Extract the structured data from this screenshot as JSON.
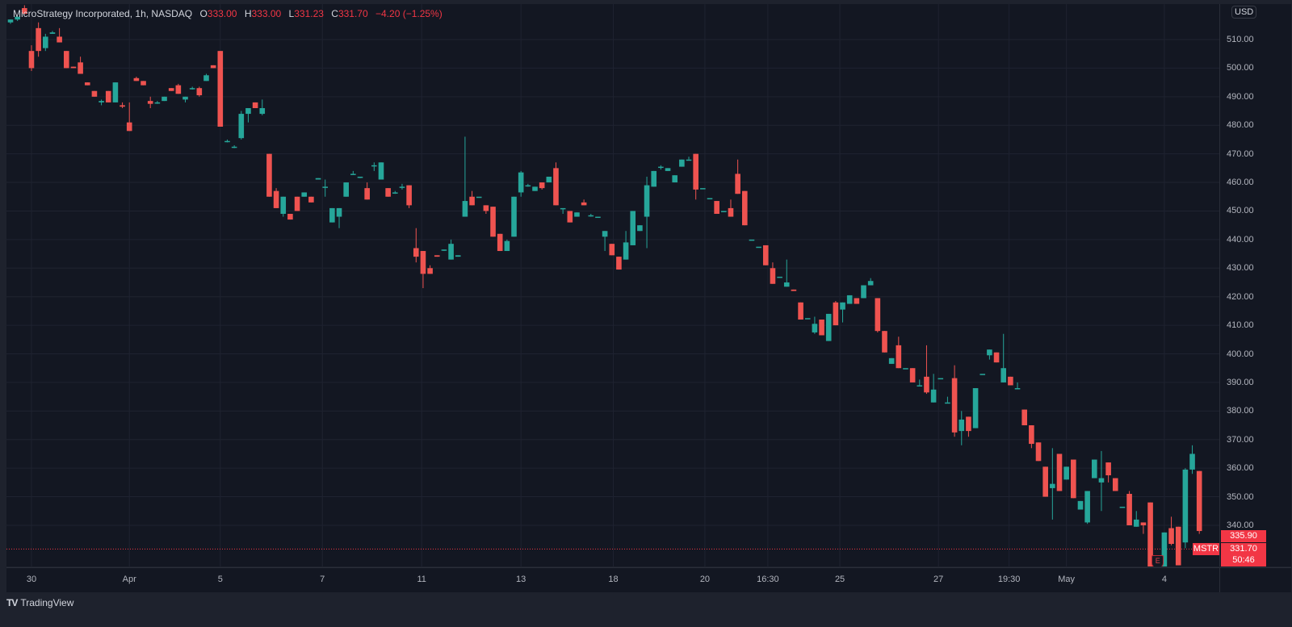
{
  "header": {
    "symbol_title": "MicroStrategy Incorporated, 1h, NASDAQ",
    "open_label": "O",
    "open": "333.00",
    "high_label": "H",
    "high": "333.00",
    "low_label": "L",
    "low": "331.23",
    "close_label": "C",
    "close": "331.70",
    "change": "−4.20 (−1.25%)"
  },
  "price_axis": {
    "currency": "USD",
    "labels": [
      "510.00",
      "500.00",
      "490.00",
      "480.00",
      "470.00",
      "460.00",
      "450.00",
      "440.00",
      "430.00",
      "420.00",
      "410.00",
      "400.00",
      "390.00",
      "380.00",
      "370.00",
      "360.00",
      "350.00",
      "340.00"
    ],
    "price_tag_1": "335.90",
    "ticker_tag": "MSTR",
    "last_price": "331.70",
    "countdown": "50:46"
  },
  "earnings_marker": "E",
  "footer": {
    "brand": "TradingView",
    "logo_glyph": "TV"
  },
  "colors": {
    "up": "#26a69a",
    "down": "#ef5350",
    "background": "#131722",
    "grid": "#1f2330"
  },
  "chart_data": {
    "type": "candlestick",
    "title": "MicroStrategy Incorporated, 1h, NASDAQ",
    "ylim": [
      320,
      520
    ],
    "yticks": [
      340,
      350,
      360,
      370,
      380,
      390,
      400,
      410,
      420,
      430,
      440,
      450,
      460,
      470,
      480,
      490,
      500,
      510
    ],
    "last_price": 331.7,
    "x_ticks": [
      {
        "label": "30",
        "bar": 3
      },
      {
        "label": "Apr",
        "bar": 17
      },
      {
        "label": "5",
        "bar": 30
      },
      {
        "label": "7",
        "bar": 44.6
      },
      {
        "label": "11",
        "bar": 58.8
      },
      {
        "label": "13",
        "bar": 73
      },
      {
        "label": "18",
        "bar": 86.2
      },
      {
        "label": "20",
        "bar": 99.3
      },
      {
        "label": "16:30",
        "bar": 108.3
      },
      {
        "label": "25",
        "bar": 118.6
      },
      {
        "label": "27",
        "bar": 132.7
      },
      {
        "label": "19:30",
        "bar": 142.8
      },
      {
        "label": "May",
        "bar": 151
      },
      {
        "label": "4",
        "bar": 165
      }
    ],
    "earnings_bar": 164,
    "ohlc": [
      [
        516,
        517,
        515.5,
        517
      ],
      [
        517,
        518,
        516.5,
        518
      ],
      [
        521,
        522,
        519,
        519
      ],
      [
        506,
        508,
        499,
        500
      ],
      [
        514,
        516,
        504,
        506
      ],
      [
        507,
        512,
        506,
        511
      ],
      [
        512,
        513,
        512,
        512.5
      ],
      [
        511,
        514,
        509,
        509
      ],
      [
        506,
        506,
        500,
        500
      ],
      [
        500.5,
        500.5,
        500,
        500
      ],
      [
        502,
        504,
        498,
        498
      ],
      [
        495,
        495,
        494,
        494
      ],
      [
        492,
        492,
        490,
        490
      ],
      [
        488,
        489,
        487,
        488.5
      ],
      [
        492,
        492,
        488,
        488
      ],
      [
        488,
        495,
        488,
        495
      ],
      [
        487,
        488,
        486,
        486.5
      ],
      [
        481,
        488,
        478,
        478
      ],
      [
        496.5,
        497,
        495.5,
        495.5
      ],
      [
        495.5,
        495.5,
        494,
        494
      ],
      [
        488.5,
        490,
        486,
        487.5
      ],
      [
        488,
        488.5,
        487.5,
        488
      ],
      [
        488.5,
        490,
        488.5,
        490
      ],
      [
        493,
        493,
        492,
        492
      ],
      [
        494,
        494.5,
        491,
        491
      ],
      [
        489,
        490,
        488,
        490
      ],
      [
        493,
        493.5,
        492.5,
        493
      ],
      [
        493,
        493.5,
        490,
        490.5
      ],
      [
        495.5,
        498,
        495.5,
        497.5
      ],
      [
        501,
        501,
        500,
        500
      ],
      [
        506,
        506,
        479.5,
        479.5
      ],
      [
        474.5,
        475,
        474,
        474.5
      ],
      [
        472.5,
        473,
        472,
        472.5
      ],
      [
        475.5,
        485,
        475,
        484
      ],
      [
        484,
        486,
        481,
        486
      ],
      [
        488,
        488,
        486,
        486
      ],
      [
        484,
        489,
        483.5,
        486
      ],
      [
        470,
        470,
        455,
        455
      ],
      [
        457,
        458,
        451,
        451
      ],
      [
        449,
        455,
        448,
        455
      ],
      [
        449,
        449,
        447,
        447
      ],
      [
        455,
        455,
        450,
        450
      ],
      [
        455,
        456.5,
        455,
        456.5
      ],
      [
        455,
        455,
        453,
        453
      ],
      [
        461,
        461.5,
        461,
        461.5
      ],
      [
        458.5,
        461,
        455,
        458.5
      ],
      [
        446,
        451,
        446,
        451
      ],
      [
        448,
        451,
        444,
        451
      ],
      [
        455,
        460,
        455,
        460
      ],
      [
        463,
        464,
        463,
        463
      ],
      [
        462,
        462,
        461.5,
        462
      ],
      [
        458,
        460,
        454,
        454
      ],
      [
        466,
        467,
        464,
        466
      ],
      [
        461,
        467,
        461,
        467
      ],
      [
        458,
        458,
        455,
        455
      ],
      [
        456.5,
        457,
        456,
        456.5
      ],
      [
        458.5,
        459.5,
        457.5,
        458.5
      ],
      [
        459,
        459,
        451,
        452
      ],
      [
        437,
        444,
        432,
        434
      ],
      [
        436,
        436,
        423,
        428
      ],
      [
        430,
        431,
        428,
        428
      ],
      [
        434.5,
        434.5,
        434,
        434
      ],
      [
        436.5,
        436.5,
        436,
        436.5
      ],
      [
        433,
        440,
        433,
        438.5
      ],
      [
        434,
        434.5,
        434,
        434.5
      ],
      [
        448,
        476,
        448,
        453.5
      ],
      [
        455,
        457,
        452,
        452
      ],
      [
        455,
        455,
        455,
        455
      ],
      [
        452,
        452,
        449,
        450
      ],
      [
        451.5,
        451.5,
        441,
        441
      ],
      [
        442,
        442,
        436,
        436
      ],
      [
        436,
        440,
        436,
        439.5
      ],
      [
        441,
        455,
        441,
        455
      ],
      [
        456.5,
        464,
        455,
        463.5
      ],
      [
        459,
        459.5,
        458.5,
        459
      ],
      [
        457,
        458.5,
        457,
        458.5
      ],
      [
        460,
        460,
        457.5,
        458
      ],
      [
        460,
        462,
        460,
        462
      ],
      [
        465,
        467,
        452,
        452
      ],
      [
        451,
        451,
        449,
        451
      ],
      [
        450,
        450,
        446,
        446
      ],
      [
        448,
        449.5,
        448,
        449.5
      ],
      [
        453,
        454,
        452,
        452
      ],
      [
        448.5,
        449,
        448,
        448.5
      ],
      [
        448,
        448,
        448,
        448
      ],
      [
        441,
        443,
        436,
        443
      ],
      [
        438.5,
        438.5,
        434.5,
        434.5
      ],
      [
        434,
        434,
        429.5,
        429.5
      ],
      [
        433,
        443,
        433,
        439
      ],
      [
        438,
        450,
        438,
        450
      ],
      [
        443,
        445,
        443,
        445
      ],
      [
        448,
        462,
        437,
        459
      ],
      [
        458.5,
        464,
        458.5,
        464
      ],
      [
        465.5,
        466,
        464.5,
        465.5
      ],
      [
        464,
        465,
        464,
        465
      ],
      [
        460,
        462.5,
        460,
        462.5
      ],
      [
        465.5,
        468,
        465.5,
        468
      ],
      [
        468,
        469,
        468,
        468
      ],
      [
        470,
        470,
        454,
        457.5
      ],
      [
        458,
        458,
        458,
        458
      ],
      [
        454.5,
        454.5,
        454.5,
        454.5
      ],
      [
        453.5,
        453.5,
        449,
        449
      ],
      [
        450,
        450,
        450,
        450
      ],
      [
        451,
        454,
        448,
        448
      ],
      [
        463,
        468,
        456,
        456
      ],
      [
        457,
        457,
        445,
        445
      ],
      [
        440,
        440,
        440,
        440
      ],
      [
        437.5,
        437.5,
        437.5,
        437.5
      ],
      [
        438,
        438,
        431,
        431
      ],
      [
        430,
        432,
        424.5,
        424.5
      ],
      [
        427,
        427,
        427,
        427
      ],
      [
        423.5,
        433,
        423.5,
        425
      ],
      [
        422.5,
        422.5,
        422,
        422
      ],
      [
        418,
        418,
        412,
        412
      ],
      [
        412.5,
        412.5,
        412.5,
        412.5
      ],
      [
        407.5,
        413,
        407,
        410.5
      ],
      [
        412,
        412,
        406.5,
        406.5
      ],
      [
        404.5,
        414,
        404.5,
        414
      ],
      [
        418,
        418.5,
        410,
        410
      ],
      [
        415.5,
        418,
        411,
        418
      ],
      [
        417.5,
        420.5,
        417.5,
        420.5
      ],
      [
        419.5,
        419.5,
        417.5,
        417.5
      ],
      [
        419.5,
        424,
        419.5,
        424
      ],
      [
        424,
        426.5,
        424,
        425.5
      ],
      [
        419.5,
        419.5,
        407.5,
        408
      ],
      [
        408,
        408,
        400.5,
        400.5
      ],
      [
        396.5,
        398.5,
        396.5,
        398.5
      ],
      [
        403,
        406,
        395,
        395
      ],
      [
        395,
        395,
        395,
        395
      ],
      [
        395,
        395,
        390,
        390
      ],
      [
        389,
        391,
        389,
        389
      ],
      [
        392,
        403,
        386,
        386.5
      ],
      [
        383,
        393,
        383,
        387.5
      ],
      [
        391.5,
        391.5,
        391.5,
        391.5
      ],
      [
        383,
        385,
        383,
        383
      ],
      [
        391.5,
        396,
        371,
        372.5
      ],
      [
        373,
        380,
        368,
        377
      ],
      [
        378,
        378,
        371,
        373
      ],
      [
        374,
        388,
        374,
        388
      ],
      [
        393,
        393,
        393,
        393
      ],
      [
        399.5,
        401.5,
        398,
        401.5
      ],
      [
        400.5,
        400.5,
        397,
        397
      ],
      [
        390,
        407,
        390,
        395
      ],
      [
        392,
        392,
        389,
        389
      ],
      [
        388,
        390,
        388,
        388
      ],
      [
        380.5,
        380.5,
        375,
        375
      ],
      [
        375,
        375,
        367,
        368.5
      ],
      [
        369,
        369,
        362.5,
        362.5
      ],
      [
        360.5,
        360.5,
        350,
        350
      ],
      [
        353,
        367,
        342,
        354.5
      ],
      [
        365,
        365,
        352,
        352
      ],
      [
        356,
        360.5,
        356,
        360.5
      ],
      [
        363,
        363,
        349.5,
        349.5
      ],
      [
        345.5,
        348.5,
        345.5,
        348.5
      ],
      [
        341,
        352,
        340.5,
        352
      ],
      [
        356.5,
        363,
        356.5,
        363
      ],
      [
        355,
        366,
        345,
        356.5
      ],
      [
        362,
        362,
        355,
        357.5
      ],
      [
        356.5,
        356.5,
        352,
        352
      ],
      [
        346.5,
        346.5,
        346.5,
        346.5
      ],
      [
        351,
        352,
        340,
        340
      ],
      [
        339.5,
        345,
        339.5,
        342
      ],
      [
        341,
        341,
        337,
        340
      ],
      [
        348,
        348,
        325.5,
        325.5
      ],
      [
        324,
        328,
        323,
        325
      ],
      [
        325,
        337.5,
        324,
        337.5
      ],
      [
        339,
        343,
        333,
        333.5
      ],
      [
        339.5,
        339.5,
        326,
        326
      ],
      [
        334,
        360,
        332,
        359.5
      ],
      [
        359.5,
        368,
        358,
        365
      ],
      [
        359,
        359,
        337,
        338
      ],
      [
        333,
        333,
        331.23,
        331.7
      ]
    ]
  }
}
